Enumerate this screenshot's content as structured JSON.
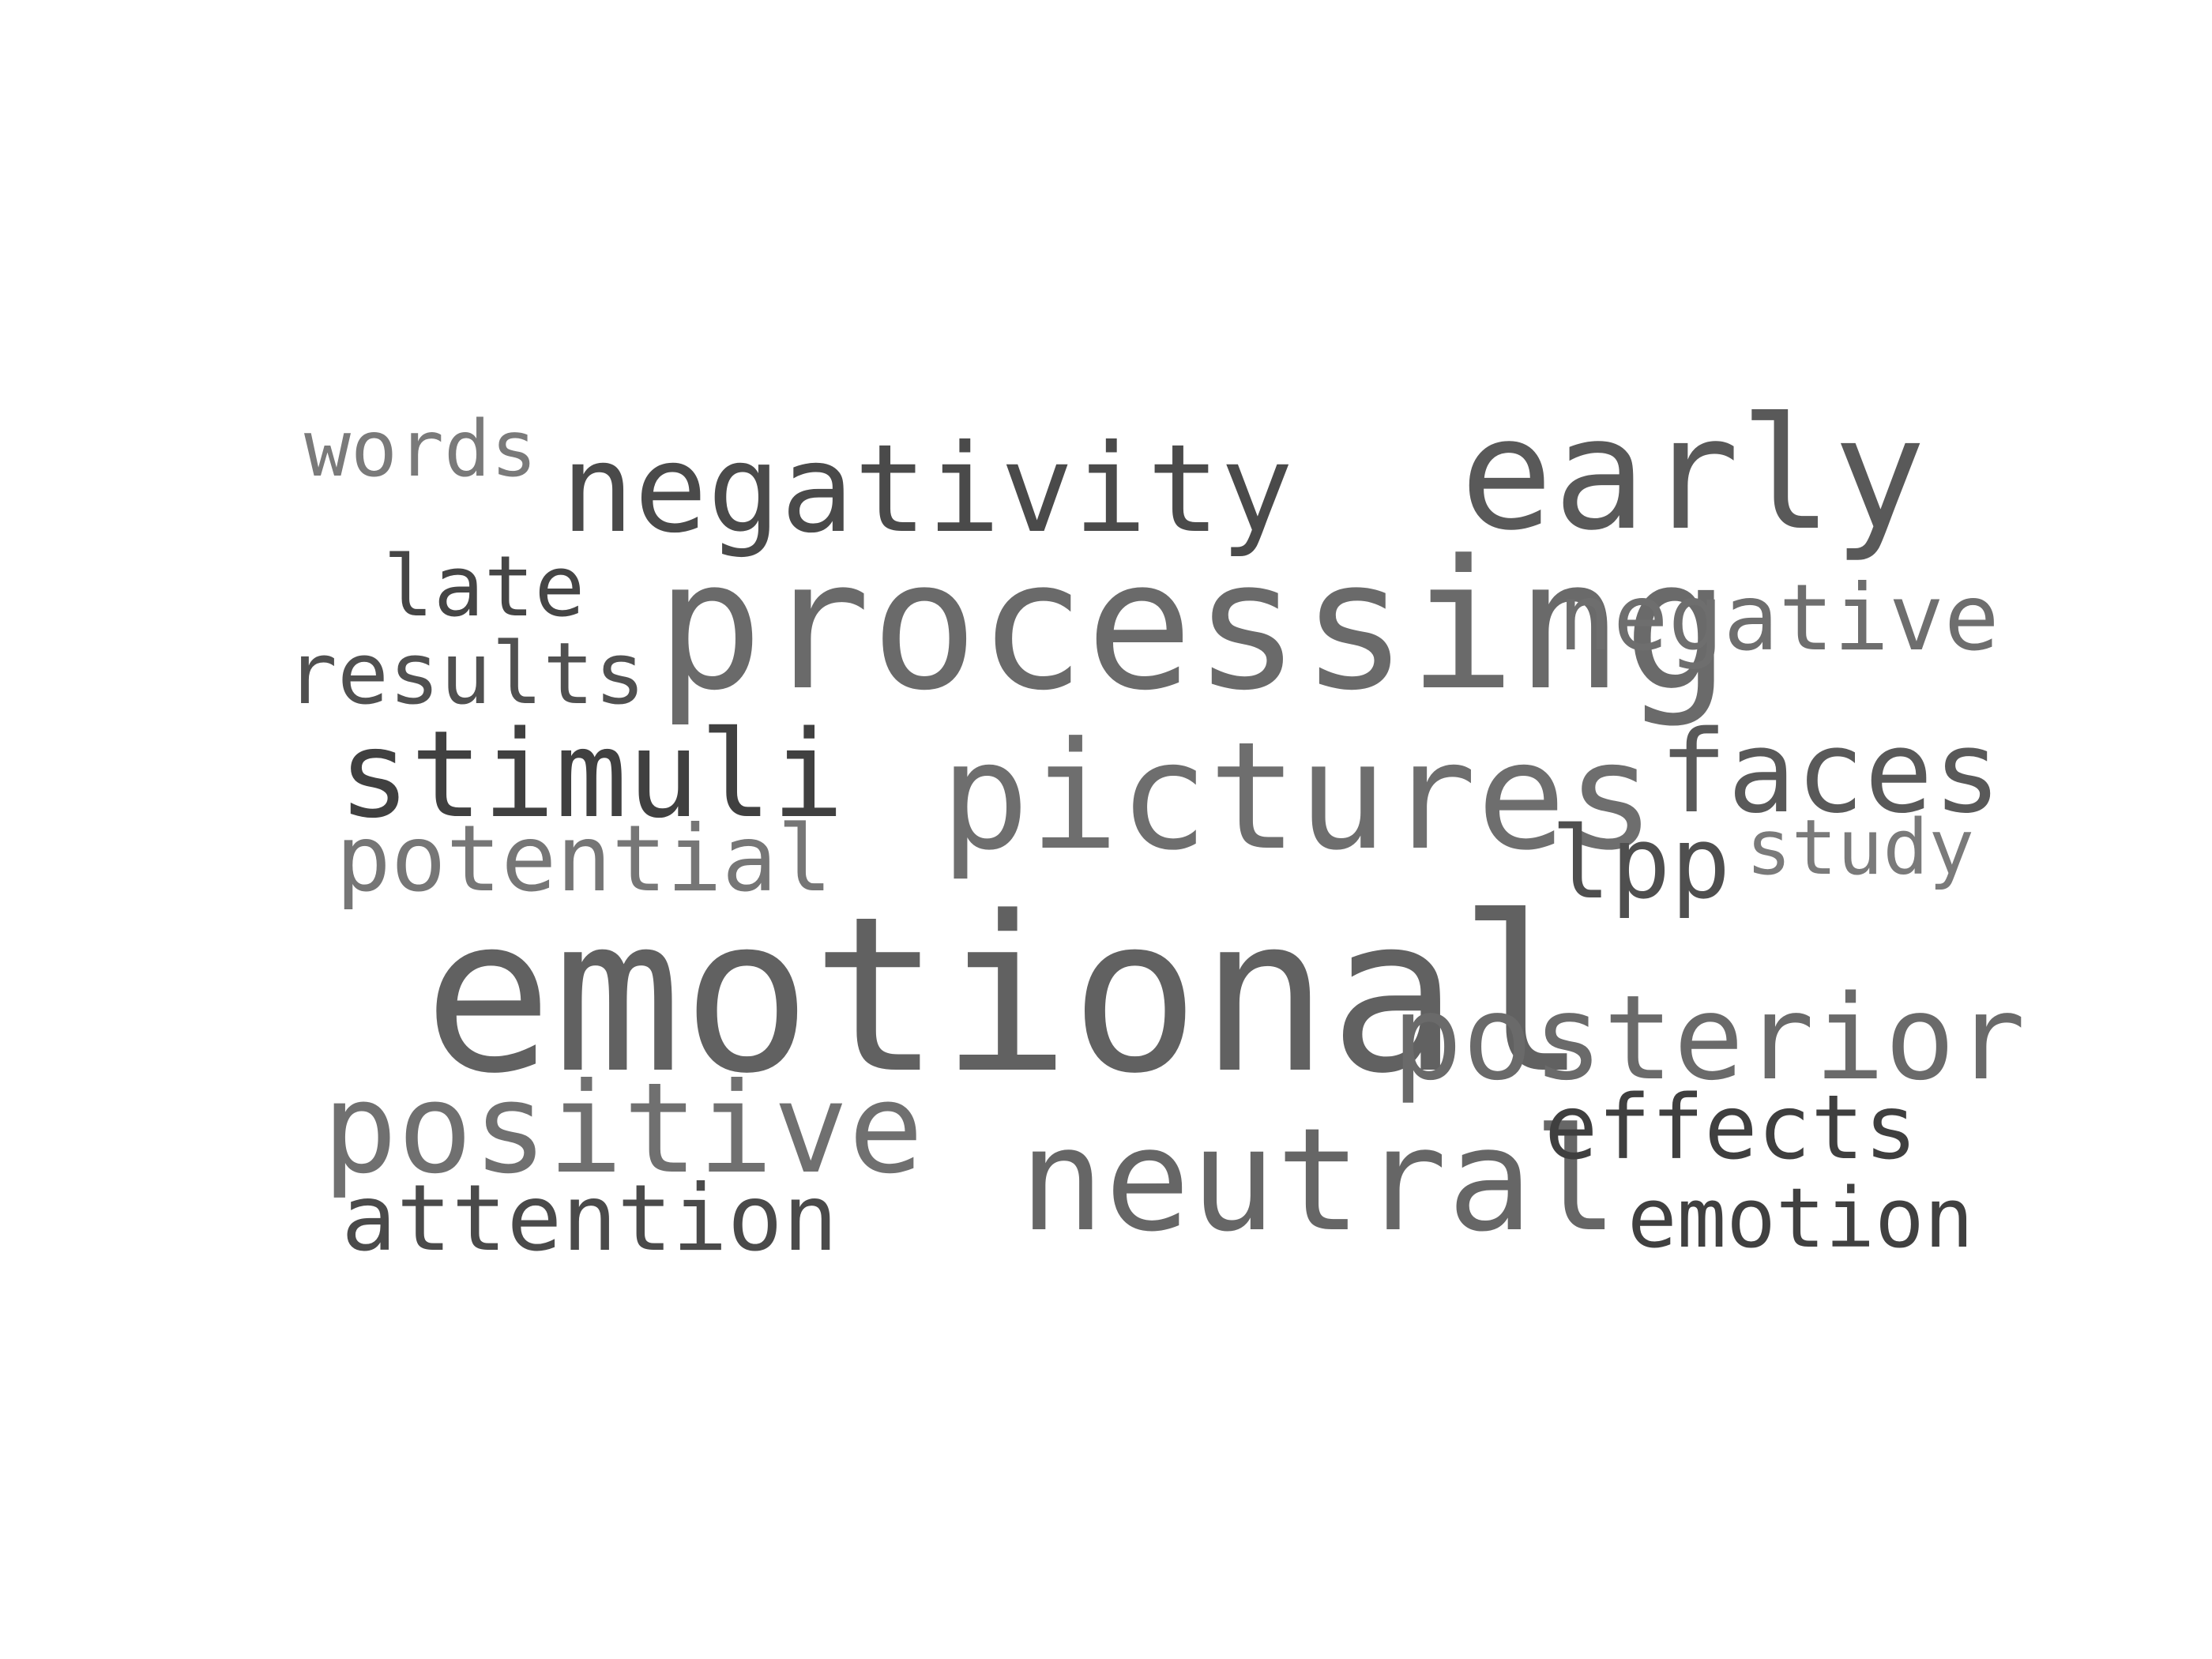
{
  "palette": {
    "dark": "#3f3f3f",
    "medium": "#555555",
    "mid": "#616161",
    "light": "#6e6e6e",
    "lighter": "#7a7a7a"
  },
  "words": [
    {
      "id": "emotional",
      "text": "emotional",
      "color": "#616161"
    },
    {
      "id": "processing",
      "text": "processing",
      "color": "#6a6a6a"
    },
    {
      "id": "early",
      "text": "early",
      "color": "#595959"
    },
    {
      "id": "pictures",
      "text": "pictures",
      "color": "#6e6e6e"
    },
    {
      "id": "neutral",
      "text": "neutral",
      "color": "#666666"
    },
    {
      "id": "negativity",
      "text": "negativity",
      "color": "#4a4a4a"
    },
    {
      "id": "positive",
      "text": "positive",
      "color": "#707070"
    },
    {
      "id": "posterior",
      "text": "posterior",
      "color": "#6a6a6a"
    },
    {
      "id": "stimuli",
      "text": "stimuli",
      "color": "#404040"
    },
    {
      "id": "faces",
      "text": "faces",
      "color": "#595959"
    },
    {
      "id": "negative",
      "text": "negative",
      "color": "#6e6e6e"
    },
    {
      "id": "lpp",
      "text": "lpp",
      "color": "#4f4f4f"
    },
    {
      "id": "potential",
      "text": "potential",
      "color": "#767676"
    },
    {
      "id": "attention",
      "text": "attention",
      "color": "#4a4a4a"
    },
    {
      "id": "effects",
      "text": "effects",
      "color": "#3f3f3f"
    },
    {
      "id": "emotion",
      "text": "emotion",
      "color": "#404040"
    },
    {
      "id": "results",
      "text": "results",
      "color": "#505050"
    },
    {
      "id": "late",
      "text": "late",
      "color": "#454545"
    },
    {
      "id": "words",
      "text": "words",
      "color": "#7a7a7a"
    },
    {
      "id": "study",
      "text": "study",
      "color": "#7a7a7a"
    }
  ]
}
